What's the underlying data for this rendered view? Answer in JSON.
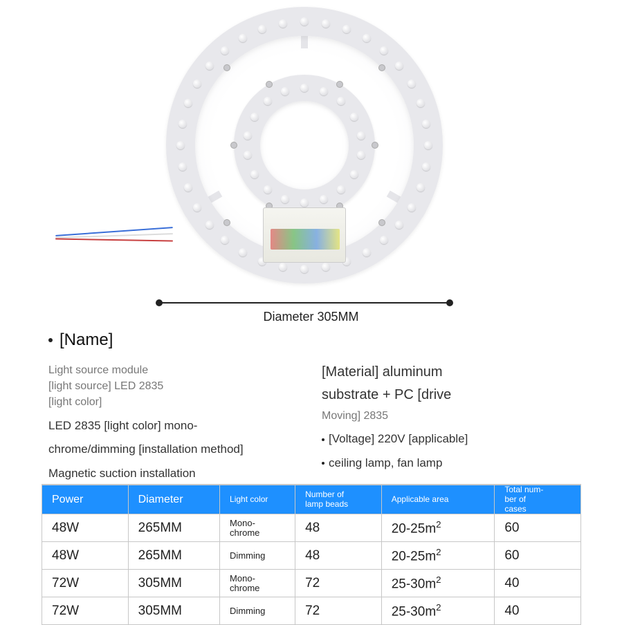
{
  "colors": {
    "header_bg": "#1e90ff",
    "header_text": "#ffffff",
    "border": "#c7c7c7",
    "text": "#222222",
    "muted": "#777777",
    "ring": "#e8e8ec",
    "wire_blue": "#3a6fd8",
    "wire_white": "#dcdcdc",
    "wire_red": "#c84040"
  },
  "product": {
    "outer_bead_count": 36,
    "inner_bead_count": 18,
    "spoke_count": 3,
    "diameter_label": "Diameter 305MM"
  },
  "info": {
    "name_label": "[Name]",
    "left": {
      "l1": "Light source module",
      "l2": "[light source] LED 2835",
      "l3": "[light color]",
      "l4": "LED 2835 [light color] mono-",
      "l5": "chrome/dimming [installation method]",
      "l6": "Magnetic suction installation"
    },
    "right": {
      "r1": "[Material] aluminum",
      "r2": "substrate + PC [drive",
      "r3": "Moving] 2835",
      "r4": "[Voltage] 220V [applicable]",
      "r5": "ceiling lamp, fan lamp"
    }
  },
  "table": {
    "headers": [
      "Power",
      "Diameter",
      "Light color",
      "Number of lamp beads",
      "Applicable area",
      "Total num-ber of cases"
    ],
    "col_widths": [
      "16%",
      "17%",
      "14%",
      "16%",
      "21%",
      "16%"
    ],
    "rows": [
      {
        "power": "48W",
        "diameter": "265MM",
        "color": "Mono-chrome",
        "beads": "48",
        "area": "20-25m²",
        "cases": "60"
      },
      {
        "power": "48W",
        "diameter": "265MM",
        "color": "Dimming",
        "beads": "48",
        "area": "20-25m²",
        "cases": "60"
      },
      {
        "power": "72W",
        "diameter": "305MM",
        "color": "Mono-chrome",
        "beads": "72",
        "area": "25-30m²",
        "cases": "40"
      },
      {
        "power": "72W",
        "diameter": "305MM",
        "color": "Dimming",
        "beads": "72",
        "area": "25-30m²",
        "cases": "40"
      }
    ]
  }
}
